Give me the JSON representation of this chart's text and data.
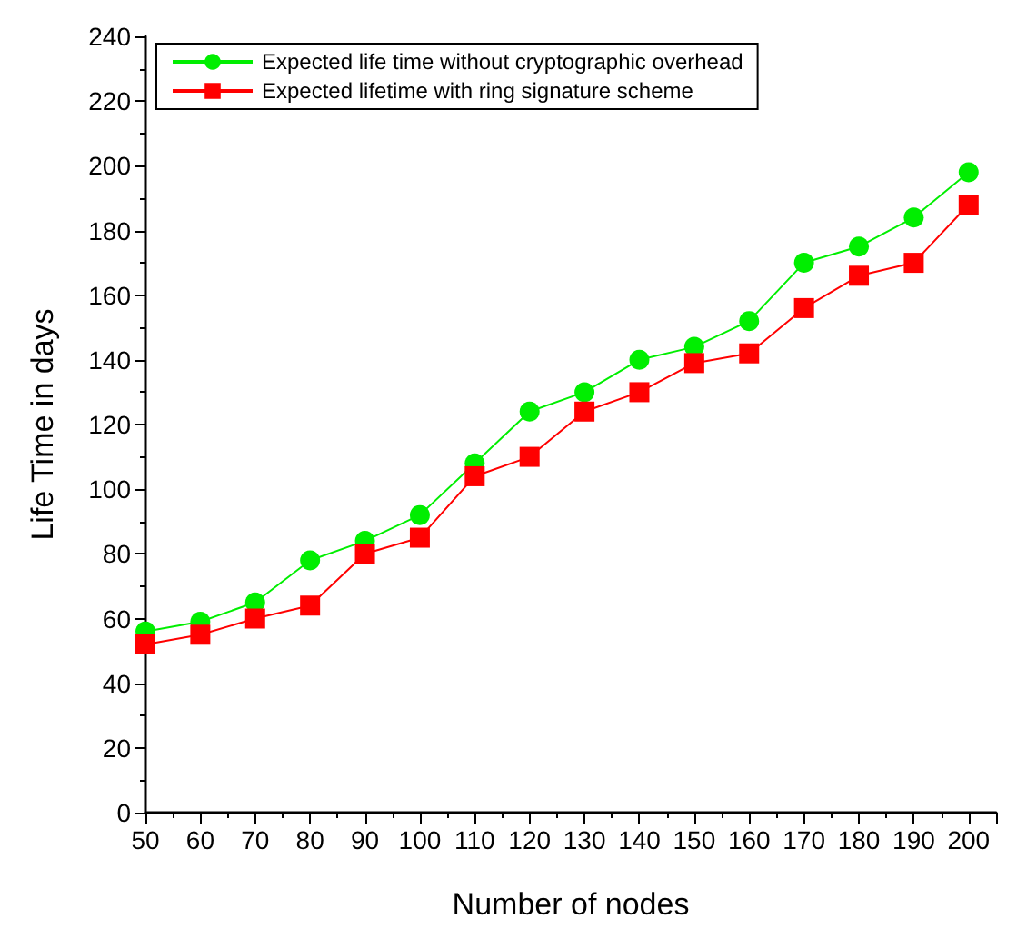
{
  "chart_data": {
    "type": "line",
    "xlabel": "Number of nodes",
    "ylabel": "Life Time in days",
    "x": [
      50,
      60,
      70,
      80,
      90,
      100,
      110,
      120,
      130,
      140,
      150,
      160,
      170,
      180,
      190,
      200
    ],
    "series": [
      {
        "name": "Expected life time without cryptographic overhead",
        "color": "#00ee00",
        "marker": "circle",
        "values": [
          56,
          59,
          65,
          78,
          84,
          92,
          108,
          124,
          130,
          140,
          144,
          152,
          170,
          175,
          184,
          198
        ]
      },
      {
        "name": "Expected lifetime with ring signature scheme",
        "color": "#ff0000",
        "marker": "square",
        "values": [
          52,
          55,
          60,
          64,
          80,
          85,
          104,
          110,
          124,
          130,
          139,
          142,
          156,
          166,
          170,
          188
        ]
      }
    ],
    "xlim": [
      50,
      205
    ],
    "xticks": [
      50,
      60,
      70,
      80,
      90,
      100,
      110,
      120,
      130,
      140,
      150,
      160,
      170,
      180,
      190,
      200
    ],
    "ylim": [
      0,
      240
    ],
    "yticks": [
      0,
      20,
      40,
      60,
      80,
      100,
      120,
      140,
      160,
      180,
      200,
      220,
      240
    ],
    "grid": false,
    "legend": "top left",
    "line_style": "solid"
  }
}
